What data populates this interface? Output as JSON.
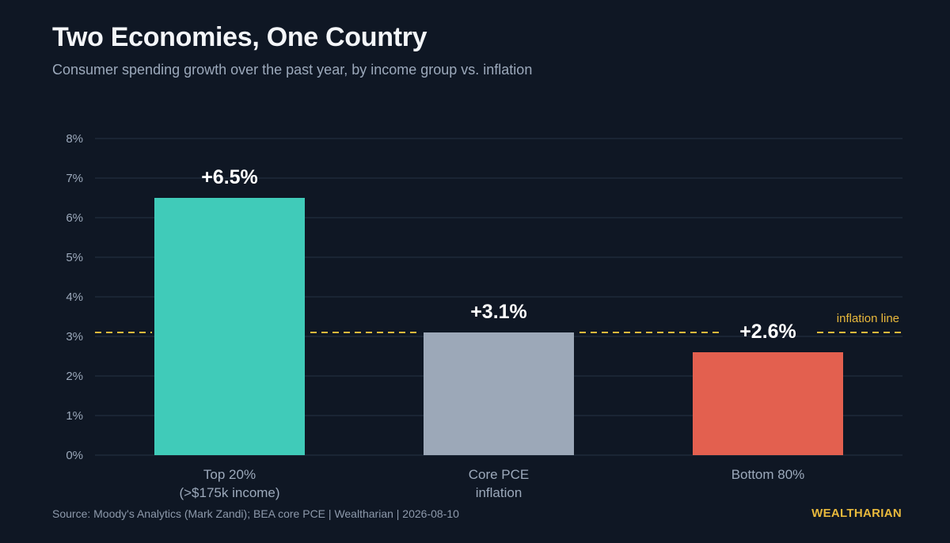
{
  "page": {
    "title": "Two Economies, One Country",
    "subtitle": "Consumer spending growth over the past year, by income group vs. inflation",
    "source": "Source: Moody's Analytics (Mark Zandi); BEA core PCE  |  Wealtharian  |  2026-08-10",
    "brand": "WEALTHARIAN"
  },
  "chart_data": {
    "type": "bar",
    "title": "Two Economies, One Country",
    "subtitle": "Consumer spending growth over the past year, by income group vs. inflation",
    "categories": [
      [
        "Top 20%",
        "(>$175k income)"
      ],
      [
        "Core PCE",
        "inflation"
      ],
      [
        "Bottom 80%"
      ]
    ],
    "values": [
      6.5,
      3.1,
      2.6
    ],
    "value_labels": [
      "+6.5%",
      "+3.1%",
      "+2.6%"
    ],
    "bar_colors": [
      "#40cbb9",
      "#9ca8b8",
      "#e3604f"
    ],
    "ylim": [
      0,
      8
    ],
    "yticks": [
      0,
      1,
      2,
      3,
      4,
      5,
      6,
      7,
      8
    ],
    "ytick_labels": [
      "0%",
      "1%",
      "2%",
      "3%",
      "4%",
      "5%",
      "6%",
      "7%",
      "8%"
    ],
    "grid": true,
    "xlabel": "",
    "ylabel": "",
    "reference_line": {
      "value": 3.1,
      "label": "inflation line",
      "style": "dashed",
      "color": "#e8b93c"
    }
  },
  "colors": {
    "background": "#0f1724",
    "grid": "#1f2a3a",
    "axis_text": "#9ca9bb",
    "value_label": "#ffffff",
    "accent": "#e8b93c"
  }
}
